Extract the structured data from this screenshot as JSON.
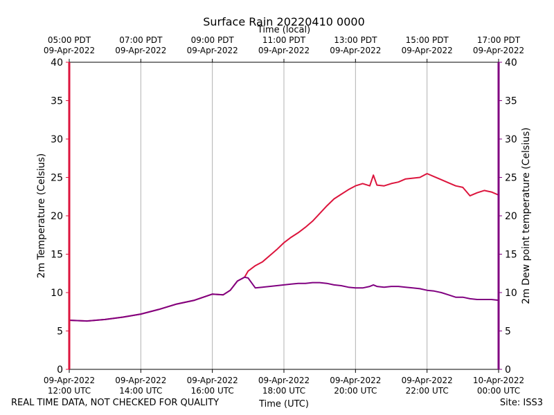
{
  "chart_data": {
    "type": "line",
    "title": "Surface Rain 20220410 0000",
    "top_axis_label": "Time (local)",
    "xlabel": "Time (UTC)",
    "ylabel_left": "2m Temperature (Celsius)",
    "ylabel_right": "2m Dew point temperature (Celsius)",
    "ylim": [
      0,
      40
    ],
    "yticks": [
      0,
      5,
      10,
      15,
      20,
      25,
      30,
      35,
      40
    ],
    "xlim_hours_utc": [
      12,
      24
    ],
    "x_grid": true,
    "top_ticks": [
      {
        "hour": 12,
        "time": "05:00 PDT",
        "date": "09-Apr-2022"
      },
      {
        "hour": 14,
        "time": "07:00 PDT",
        "date": "09-Apr-2022"
      },
      {
        "hour": 16,
        "time": "09:00 PDT",
        "date": "09-Apr-2022"
      },
      {
        "hour": 18,
        "time": "11:00 PDT",
        "date": "09-Apr-2022"
      },
      {
        "hour": 20,
        "time": "13:00 PDT",
        "date": "09-Apr-2022"
      },
      {
        "hour": 22,
        "time": "15:00 PDT",
        "date": "09-Apr-2022"
      },
      {
        "hour": 24,
        "time": "17:00 PDT",
        "date": "09-Apr-2022"
      }
    ],
    "bottom_ticks": [
      {
        "hour": 12,
        "date": "09-Apr-2022",
        "time": "12:00 UTC"
      },
      {
        "hour": 14,
        "date": "09-Apr-2022",
        "time": "14:00 UTC"
      },
      {
        "hour": 16,
        "date": "09-Apr-2022",
        "time": "16:00 UTC"
      },
      {
        "hour": 18,
        "date": "09-Apr-2022",
        "time": "18:00 UTC"
      },
      {
        "hour": 20,
        "date": "09-Apr-2022",
        "time": "20:00 UTC"
      },
      {
        "hour": 22,
        "date": "09-Apr-2022",
        "time": "22:00 UTC"
      },
      {
        "hour": 24,
        "date": "10-Apr-2022",
        "time": "00:00 UTC"
      }
    ],
    "series": [
      {
        "name": "2m Temperature",
        "color": "#dc143c",
        "x_hours": [
          12.0,
          12.5,
          13.0,
          13.5,
          14.0,
          14.5,
          15.0,
          15.5,
          16.0,
          16.3,
          16.5,
          16.7,
          16.9,
          17.0,
          17.2,
          17.4,
          17.6,
          17.8,
          18.0,
          18.2,
          18.4,
          18.6,
          18.8,
          19.0,
          19.2,
          19.4,
          19.6,
          19.8,
          20.0,
          20.2,
          20.4,
          20.5,
          20.6,
          20.8,
          21.0,
          21.2,
          21.4,
          21.6,
          21.8,
          22.0,
          22.2,
          22.4,
          22.6,
          22.8,
          23.0,
          23.2,
          23.4,
          23.6,
          23.8,
          24.0
        ],
        "values": [
          6.4,
          6.3,
          6.5,
          6.8,
          7.2,
          7.8,
          8.5,
          9.0,
          9.8,
          9.7,
          10.3,
          11.5,
          12.0,
          12.8,
          13.5,
          14.0,
          14.8,
          15.6,
          16.5,
          17.2,
          17.8,
          18.5,
          19.3,
          20.3,
          21.3,
          22.2,
          22.8,
          23.4,
          23.9,
          24.2,
          23.9,
          25.3,
          24.0,
          23.9,
          24.2,
          24.4,
          24.8,
          24.9,
          25.0,
          25.5,
          25.1,
          24.7,
          24.3,
          23.9,
          23.7,
          22.6,
          23.0,
          23.3,
          23.1,
          22.7
        ]
      },
      {
        "name": "2m Dew point temperature",
        "color": "#800080",
        "x_hours": [
          12.0,
          12.5,
          13.0,
          13.5,
          14.0,
          14.5,
          15.0,
          15.5,
          16.0,
          16.3,
          16.5,
          16.7,
          16.9,
          17.0,
          17.2,
          17.4,
          17.6,
          17.8,
          18.0,
          18.2,
          18.4,
          18.6,
          18.8,
          19.0,
          19.2,
          19.4,
          19.6,
          19.8,
          20.0,
          20.2,
          20.4,
          20.5,
          20.6,
          20.8,
          21.0,
          21.2,
          21.4,
          21.6,
          21.8,
          22.0,
          22.2,
          22.4,
          22.6,
          22.8,
          23.0,
          23.2,
          23.4,
          23.6,
          23.8,
          24.0
        ],
        "values": [
          6.4,
          6.3,
          6.5,
          6.8,
          7.2,
          7.8,
          8.5,
          9.0,
          9.8,
          9.7,
          10.3,
          11.5,
          12.0,
          11.9,
          10.6,
          10.7,
          10.8,
          10.9,
          11.0,
          11.1,
          11.2,
          11.2,
          11.3,
          11.3,
          11.2,
          11.0,
          10.9,
          10.7,
          10.6,
          10.6,
          10.8,
          11.0,
          10.8,
          10.7,
          10.8,
          10.8,
          10.7,
          10.6,
          10.5,
          10.3,
          10.2,
          10.0,
          9.7,
          9.4,
          9.4,
          9.2,
          9.1,
          9.1,
          9.1,
          9.0
        ]
      }
    ]
  },
  "footer": {
    "left_note": "REAL TIME DATA, NOT CHECKED FOR QUALITY",
    "right_note": "Site: ISS3"
  },
  "colors": {
    "left_axis": "#dc143c",
    "right_axis": "#800080",
    "grid": "#b0b0b0"
  }
}
